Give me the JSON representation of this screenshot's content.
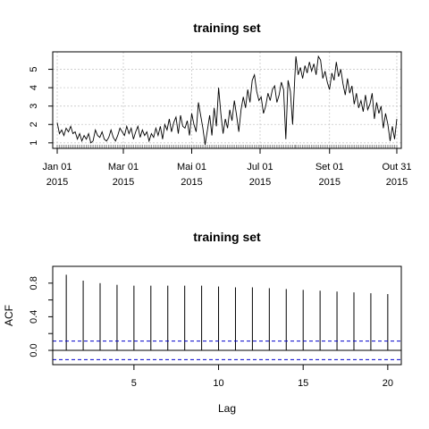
{
  "chart_data": [
    {
      "type": "line",
      "title": "training set",
      "xlabel": "",
      "ylabel": "",
      "x_range": [
        "2014-12-28",
        "2015-11-04"
      ],
      "ylim": [
        0.7,
        5.95
      ],
      "grid": true,
      "y_ticks": [
        1,
        2,
        3,
        4,
        5
      ],
      "x_ticks": [
        {
          "date": "2015-01-01",
          "label": "Jan 01",
          "year": "2015"
        },
        {
          "date": "2015-03-01",
          "label": "Mar 01",
          "year": "2015"
        },
        {
          "date": "2015-05-01",
          "label": "Mai 01",
          "year": "2015"
        },
        {
          "date": "2015-07-01",
          "label": "Jul 01",
          "year": "2015"
        },
        {
          "date": "2015-09-01",
          "label": "Set 01",
          "year": "2015"
        },
        {
          "date": "2015-10-31",
          "label": "Out 31",
          "year": "2015"
        }
      ],
      "series": [
        {
          "color": "#000000",
          "points": [
            [
              "2015-01-01",
              2.1
            ],
            [
              "2015-01-03",
              1.5
            ],
            [
              "2015-01-05",
              1.7
            ],
            [
              "2015-01-07",
              1.4
            ],
            [
              "2015-01-09",
              1.8
            ],
            [
              "2015-01-11",
              1.6
            ],
            [
              "2015-01-13",
              1.9
            ],
            [
              "2015-01-15",
              1.5
            ],
            [
              "2015-01-17",
              1.6
            ],
            [
              "2015-01-19",
              1.2
            ],
            [
              "2015-01-21",
              1.5
            ],
            [
              "2015-01-23",
              1.1
            ],
            [
              "2015-01-25",
              1.4
            ],
            [
              "2015-01-27",
              1.2
            ],
            [
              "2015-01-29",
              1.5
            ],
            [
              "2015-01-31",
              1.0
            ],
            [
              "2015-02-02",
              1.1
            ],
            [
              "2015-02-04",
              1.7
            ],
            [
              "2015-02-06",
              1.4
            ],
            [
              "2015-02-08",
              1.3
            ],
            [
              "2015-02-10",
              1.6
            ],
            [
              "2015-02-12",
              1.2
            ],
            [
              "2015-02-14",
              1.1
            ],
            [
              "2015-02-16",
              1.3
            ],
            [
              "2015-02-18",
              1.7
            ],
            [
              "2015-02-20",
              1.3
            ],
            [
              "2015-02-22",
              1.1
            ],
            [
              "2015-02-24",
              1.4
            ],
            [
              "2015-02-26",
              1.8
            ],
            [
              "2015-02-28",
              1.6
            ],
            [
              "2015-03-02",
              1.4
            ],
            [
              "2015-03-04",
              1.9
            ],
            [
              "2015-03-06",
              1.5
            ],
            [
              "2015-03-08",
              1.8
            ],
            [
              "2015-03-10",
              1.2
            ],
            [
              "2015-03-12",
              1.6
            ],
            [
              "2015-03-14",
              1.9
            ],
            [
              "2015-03-16",
              1.3
            ],
            [
              "2015-03-18",
              1.7
            ],
            [
              "2015-03-20",
              1.4
            ],
            [
              "2015-03-22",
              1.6
            ],
            [
              "2015-03-24",
              1.1
            ],
            [
              "2015-03-26",
              1.5
            ],
            [
              "2015-03-28",
              1.3
            ],
            [
              "2015-03-30",
              1.8
            ],
            [
              "2015-04-01",
              1.4
            ],
            [
              "2015-04-03",
              1.9
            ],
            [
              "2015-04-05",
              1.2
            ],
            [
              "2015-04-07",
              2.0
            ],
            [
              "2015-04-09",
              1.7
            ],
            [
              "2015-04-11",
              2.3
            ],
            [
              "2015-04-13",
              1.6
            ],
            [
              "2015-04-15",
              2.1
            ],
            [
              "2015-04-17",
              2.4
            ],
            [
              "2015-04-19",
              1.5
            ],
            [
              "2015-04-21",
              2.5
            ],
            [
              "2015-04-23",
              1.9
            ],
            [
              "2015-04-25",
              1.8
            ],
            [
              "2015-04-27",
              2.2
            ],
            [
              "2015-04-29",
              1.4
            ],
            [
              "2015-05-01",
              2.6
            ],
            [
              "2015-05-03",
              2.0
            ],
            [
              "2015-05-05",
              1.6
            ],
            [
              "2015-05-07",
              3.2
            ],
            [
              "2015-05-09",
              2.5
            ],
            [
              "2015-05-11",
              1.8
            ],
            [
              "2015-05-13",
              0.9
            ],
            [
              "2015-05-15",
              1.7
            ],
            [
              "2015-05-17",
              2.5
            ],
            [
              "2015-05-19",
              1.4
            ],
            [
              "2015-05-21",
              2.9
            ],
            [
              "2015-05-23",
              1.9
            ],
            [
              "2015-05-25",
              4.0
            ],
            [
              "2015-05-27",
              2.6
            ],
            [
              "2015-05-29",
              1.5
            ],
            [
              "2015-05-31",
              2.3
            ],
            [
              "2015-06-02",
              1.8
            ],
            [
              "2015-06-04",
              2.8
            ],
            [
              "2015-06-06",
              2.2
            ],
            [
              "2015-06-08",
              3.3
            ],
            [
              "2015-06-10",
              2.5
            ],
            [
              "2015-06-12",
              1.6
            ],
            [
              "2015-06-14",
              2.8
            ],
            [
              "2015-06-16",
              3.5
            ],
            [
              "2015-06-18",
              2.9
            ],
            [
              "2015-06-20",
              3.9
            ],
            [
              "2015-06-22",
              3.2
            ],
            [
              "2015-06-24",
              4.4
            ],
            [
              "2015-06-26",
              4.7
            ],
            [
              "2015-06-28",
              3.8
            ],
            [
              "2015-06-30",
              3.3
            ],
            [
              "2015-07-02",
              3.5
            ],
            [
              "2015-07-04",
              2.6
            ],
            [
              "2015-07-06",
              3.0
            ],
            [
              "2015-07-08",
              3.7
            ],
            [
              "2015-07-10",
              3.3
            ],
            [
              "2015-07-12",
              3.9
            ],
            [
              "2015-07-14",
              4.1
            ],
            [
              "2015-07-16",
              3.2
            ],
            [
              "2015-07-18",
              3.6
            ],
            [
              "2015-07-20",
              4.3
            ],
            [
              "2015-07-22",
              3.9
            ],
            [
              "2015-07-24",
              1.2
            ],
            [
              "2015-07-26",
              4.4
            ],
            [
              "2015-07-28",
              3.8
            ],
            [
              "2015-07-30",
              2.0
            ],
            [
              "2015-08-01",
              4.6
            ],
            [
              "2015-08-02",
              5.7
            ],
            [
              "2015-08-04",
              4.7
            ],
            [
              "2015-08-06",
              5.1
            ],
            [
              "2015-08-08",
              4.5
            ],
            [
              "2015-08-10",
              5.2
            ],
            [
              "2015-08-12",
              4.8
            ],
            [
              "2015-08-14",
              5.4
            ],
            [
              "2015-08-16",
              4.9
            ],
            [
              "2015-08-18",
              5.3
            ],
            [
              "2015-08-20",
              4.7
            ],
            [
              "2015-08-22",
              5.7
            ],
            [
              "2015-08-24",
              5.5
            ],
            [
              "2015-08-26",
              4.5
            ],
            [
              "2015-08-28",
              4.9
            ],
            [
              "2015-08-30",
              4.3
            ],
            [
              "2015-09-01",
              3.9
            ],
            [
              "2015-09-03",
              4.8
            ],
            [
              "2015-09-05",
              4.4
            ],
            [
              "2015-09-07",
              5.4
            ],
            [
              "2015-09-09",
              4.6
            ],
            [
              "2015-09-11",
              5.0
            ],
            [
              "2015-09-13",
              4.2
            ],
            [
              "2015-09-15",
              3.6
            ],
            [
              "2015-09-17",
              4.5
            ],
            [
              "2015-09-19",
              3.7
            ],
            [
              "2015-09-21",
              4.1
            ],
            [
              "2015-09-23",
              3.1
            ],
            [
              "2015-09-25",
              3.7
            ],
            [
              "2015-09-27",
              2.9
            ],
            [
              "2015-09-29",
              3.3
            ],
            [
              "2015-10-01",
              2.7
            ],
            [
              "2015-10-03",
              3.6
            ],
            [
              "2015-10-05",
              2.8
            ],
            [
              "2015-10-07",
              3.1
            ],
            [
              "2015-10-09",
              3.7
            ],
            [
              "2015-10-11",
              2.3
            ],
            [
              "2015-10-13",
              3.2
            ],
            [
              "2015-10-15",
              2.6
            ],
            [
              "2015-10-17",
              3.0
            ],
            [
              "2015-10-19",
              1.8
            ],
            [
              "2015-10-21",
              2.6
            ],
            [
              "2015-10-23",
              2.0
            ],
            [
              "2015-10-25",
              1.1
            ],
            [
              "2015-10-27",
              1.9
            ],
            [
              "2015-10-29",
              1.2
            ],
            [
              "2015-10-31",
              2.3
            ]
          ]
        }
      ]
    },
    {
      "type": "bar",
      "title": "training set",
      "xlabel": "Lag",
      "ylabel": "ACF",
      "xlim": [
        0.2,
        20.8
      ],
      "ylim": [
        -0.17,
        1.0
      ],
      "x_ticks": [
        5,
        10,
        15,
        20
      ],
      "y_ticks": [
        0.0,
        0.4,
        0.8
      ],
      "y_minor_ticks": [
        0.2,
        0.6
      ],
      "categories": [
        1,
        2,
        3,
        4,
        5,
        6,
        7,
        8,
        9,
        10,
        11,
        12,
        13,
        14,
        15,
        16,
        17,
        18,
        19,
        20
      ],
      "values": [
        0.9,
        0.83,
        0.8,
        0.78,
        0.77,
        0.77,
        0.77,
        0.77,
        0.77,
        0.76,
        0.75,
        0.75,
        0.74,
        0.73,
        0.72,
        0.71,
        0.7,
        0.69,
        0.68,
        0.67
      ],
      "confidence_bounds": [
        0.11,
        -0.11
      ],
      "confidence_color": "#0000cc"
    }
  ]
}
